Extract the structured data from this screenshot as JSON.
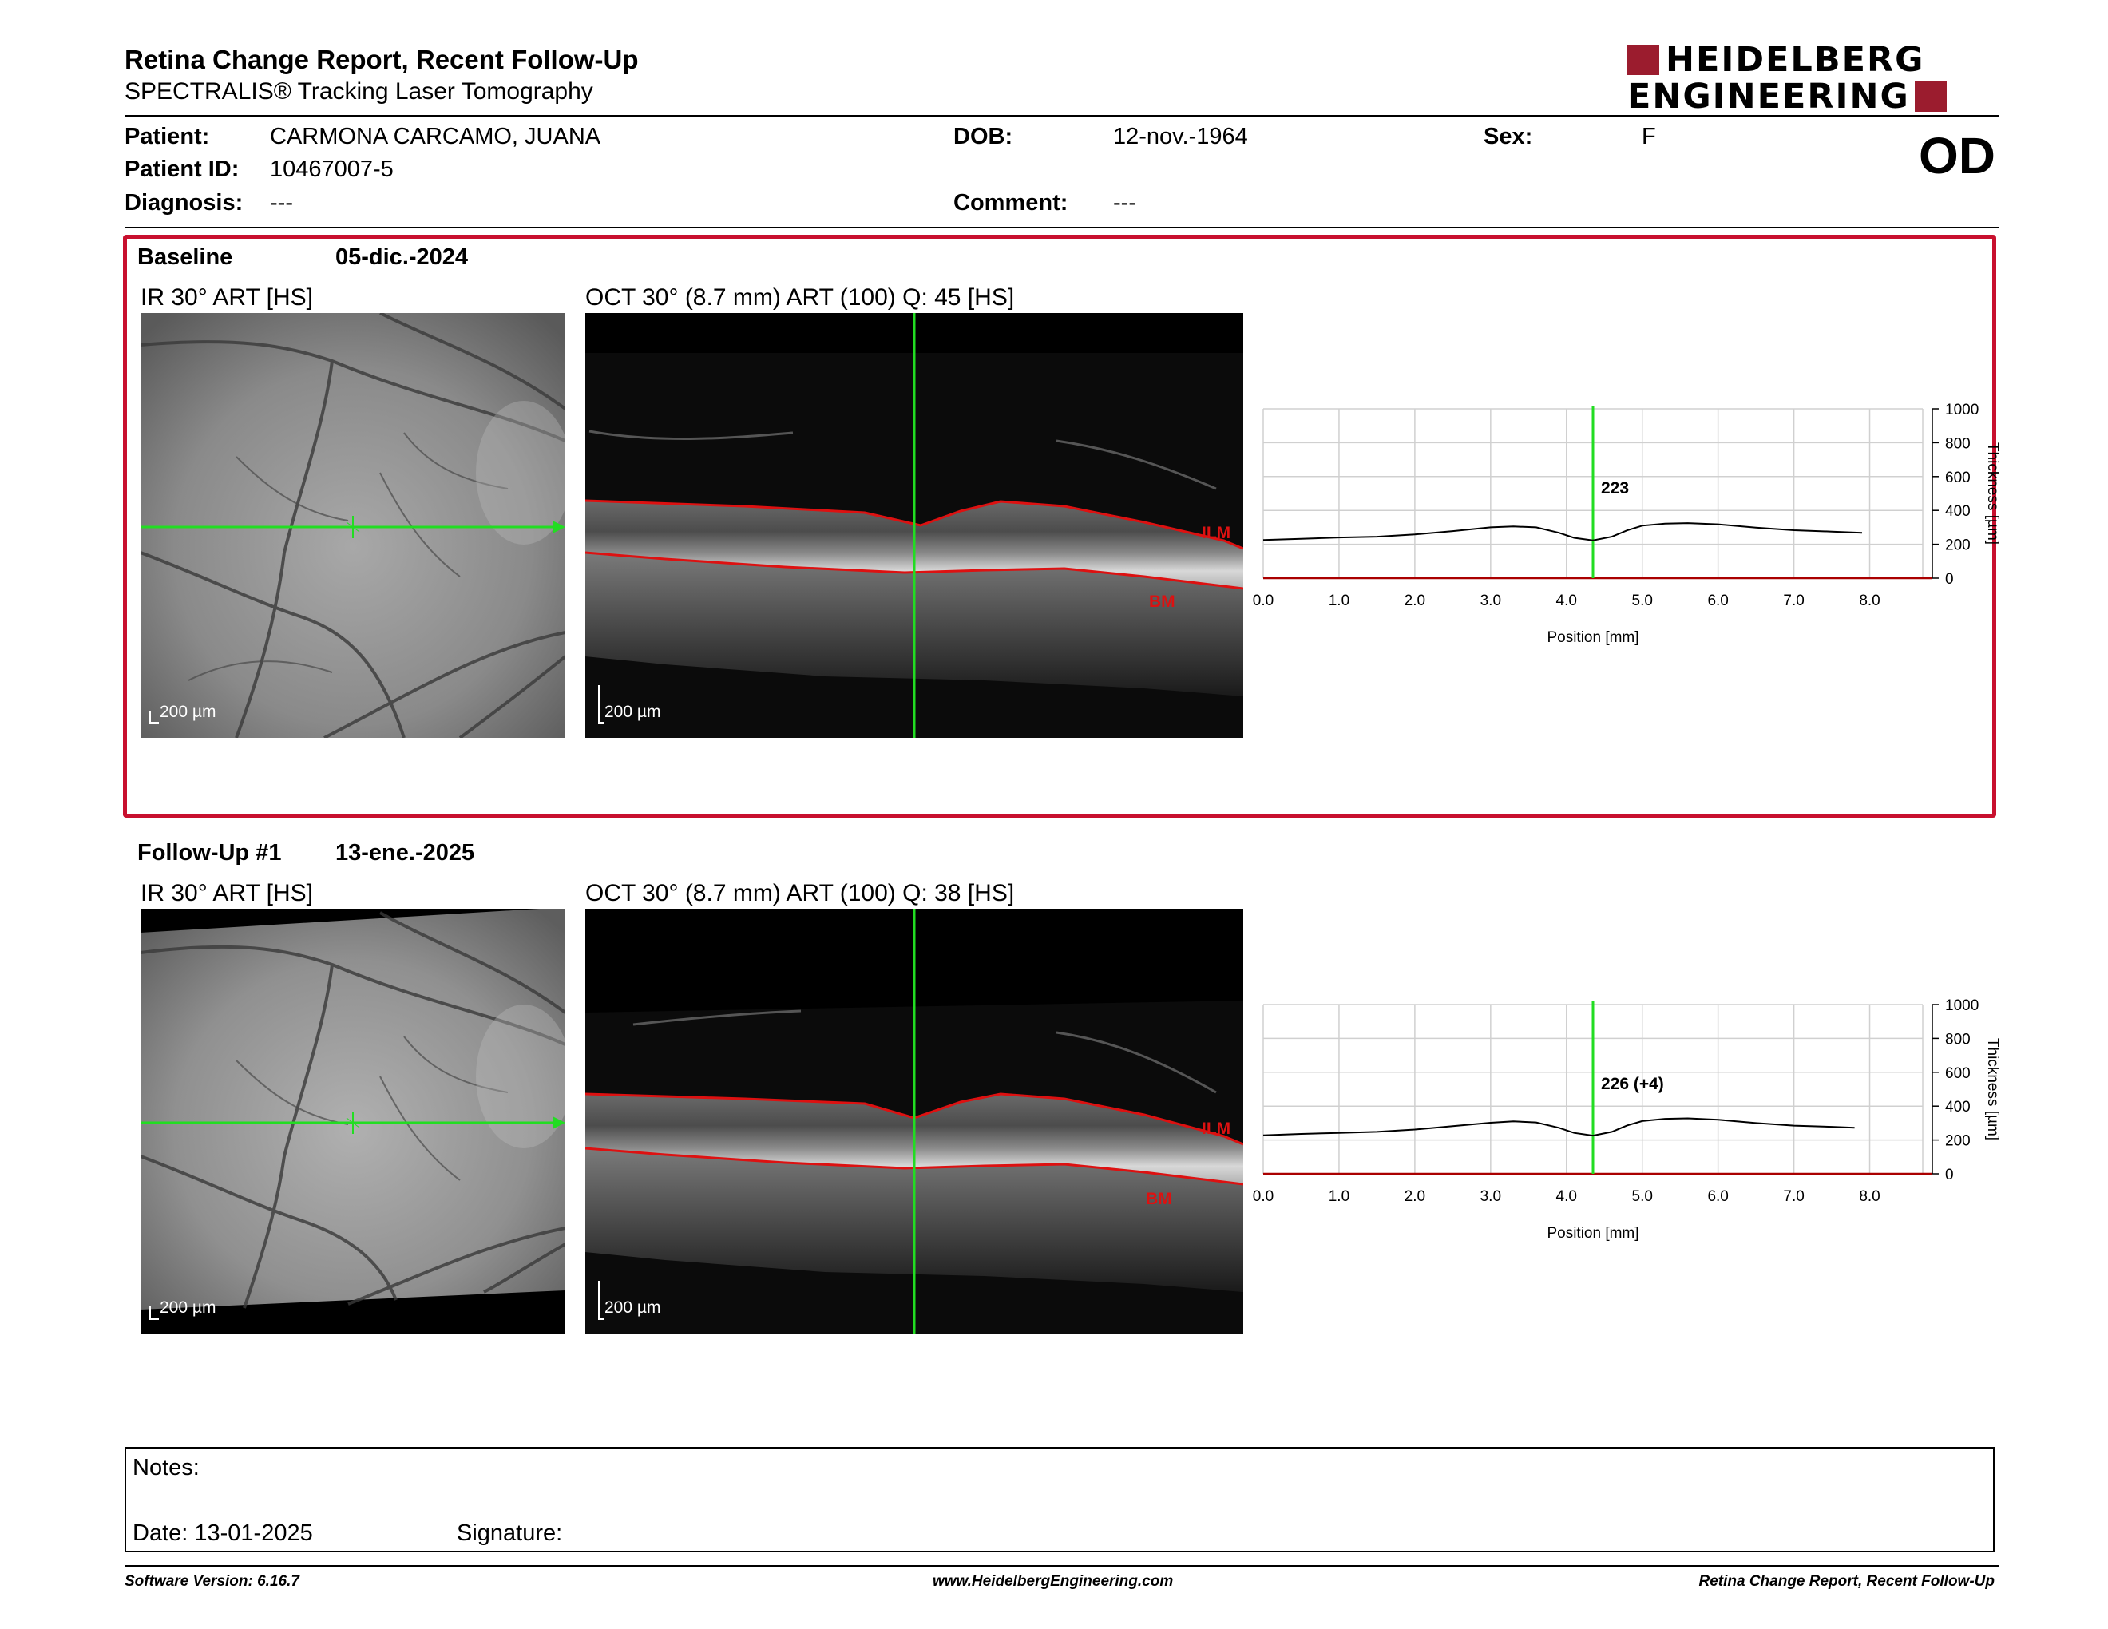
{
  "header": {
    "title": "Retina Change Report, Recent Follow-Up",
    "subtitle": "SPECTRALIS® Tracking Laser Tomography",
    "logo_line1": "HEIDELBERG",
    "logo_line2": "ENGINEERING",
    "eye": "OD"
  },
  "patient": {
    "patient_label": "Patient:",
    "patient_value": "CARMONA CARCAMO, JUANA",
    "id_label": "Patient ID:",
    "id_value": "10467007-5",
    "diagnosis_label": "Diagnosis:",
    "diagnosis_value": "---",
    "dob_label": "DOB:",
    "dob_value": "12-nov.-1964",
    "comment_label": "Comment:",
    "comment_value": "---",
    "sex_label": "Sex:",
    "sex_value": "F"
  },
  "colors": {
    "accent_red": "#c8102e",
    "logo_red": "#9b1c2e",
    "scan_green": "#22dd22",
    "layer_red": "#dd1111"
  },
  "sections": [
    {
      "label": "Baseline",
      "date": "05-dic.-2024",
      "ir_label": "IR 30° ART [HS]",
      "oct_label": "OCT 30° (8.7 mm) ART (100) Q: 45 [HS]",
      "scale_ir": "200 µm",
      "scale_oct": "200 µm",
      "ilm": "ILM",
      "bm": "BM",
      "marker_value": "223"
    },
    {
      "label": "Follow-Up #1",
      "date": "13-ene.-2025",
      "ir_label": "IR 30° ART [HS]",
      "oct_label": "OCT 30° (8.7 mm) ART (100) Q: 38 [HS]",
      "scale_ir": "200 µm",
      "scale_oct": "200 µm",
      "ilm": "ILM",
      "bm": "BM",
      "marker_value": "226 (+4)"
    }
  ],
  "chart_data": [
    {
      "type": "line",
      "xlabel": "Position [mm]",
      "ylabel": "Thickness [µm]",
      "xlim": [
        0,
        8.7
      ],
      "ylim": [
        0,
        1000
      ],
      "x_ticks": [
        "0.0",
        "1.0",
        "2.0",
        "3.0",
        "4.0",
        "5.0",
        "6.0",
        "7.0",
        "8.0"
      ],
      "y_ticks": [
        "0",
        "200",
        "400",
        "600",
        "800",
        "1000"
      ],
      "marker_x": 4.35,
      "marker_label": "223",
      "x": [
        0.0,
        0.5,
        1.0,
        1.5,
        2.0,
        2.5,
        3.0,
        3.3,
        3.6,
        3.9,
        4.1,
        4.35,
        4.6,
        4.8,
        5.0,
        5.3,
        5.6,
        6.0,
        6.5,
        7.0,
        7.5,
        7.9
      ],
      "y": [
        225,
        232,
        240,
        245,
        258,
        278,
        300,
        305,
        300,
        268,
        238,
        223,
        245,
        282,
        310,
        322,
        325,
        318,
        298,
        283,
        275,
        268
      ]
    },
    {
      "type": "line",
      "xlabel": "Position [mm]",
      "ylabel": "Thickness [µm]",
      "xlim": [
        0,
        8.7
      ],
      "ylim": [
        0,
        1000
      ],
      "x_ticks": [
        "0.0",
        "1.0",
        "2.0",
        "3.0",
        "4.0",
        "5.0",
        "6.0",
        "7.0",
        "8.0"
      ],
      "y_ticks": [
        "0",
        "200",
        "400",
        "600",
        "800",
        "1000"
      ],
      "marker_x": 4.35,
      "marker_label": "226 (+4)",
      "x": [
        0.0,
        0.5,
        1.0,
        1.5,
        2.0,
        2.5,
        3.0,
        3.3,
        3.6,
        3.9,
        4.1,
        4.35,
        4.6,
        4.8,
        5.0,
        5.3,
        5.6,
        6.0,
        6.5,
        7.0,
        7.5,
        7.8
      ],
      "y": [
        228,
        236,
        242,
        248,
        262,
        282,
        302,
        310,
        304,
        272,
        242,
        226,
        248,
        286,
        312,
        325,
        328,
        320,
        300,
        285,
        278,
        272
      ]
    }
  ],
  "notes": {
    "notes_label": "Notes:",
    "date_label": "Date: 13-01-2025",
    "signature_label": "Signature:"
  },
  "footer": {
    "left": "Software Version: 6.16.7",
    "center": "www.HeidelbergEngineering.com",
    "right": "Retina Change Report, Recent Follow-Up"
  }
}
